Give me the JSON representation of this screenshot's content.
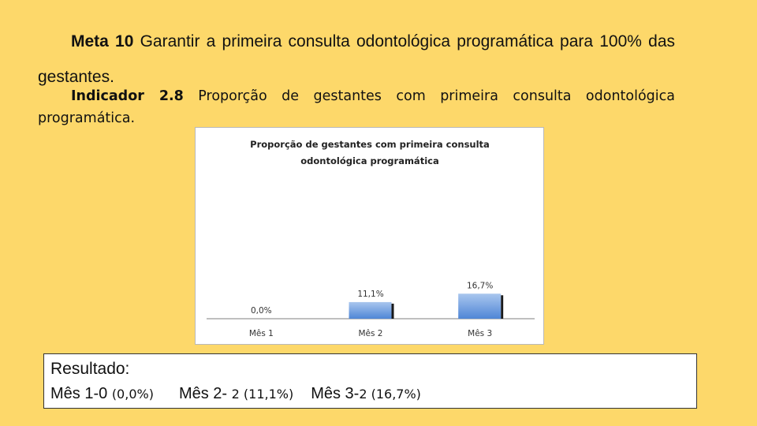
{
  "meta": {
    "label": "Meta 10",
    "text": " Garantir a primeira consulta odontológica programática para 100% das gestantes."
  },
  "indicador": {
    "label": "Indicador 2.8",
    "text": " Proporção de gestantes com primeira consulta odontológica programática."
  },
  "colors": {
    "background": "#fdd86a",
    "bar_top": "#a9c6ee",
    "bar_bottom": "#4f86d6",
    "bar_shadow": "#1a1a1a"
  },
  "chart_data": {
    "type": "bar",
    "title_lines": [
      "Proporção de gestantes com primeira consulta",
      "odontológica programática"
    ],
    "categories": [
      "Mês 1",
      "Mês 2",
      "Mês 3"
    ],
    "values": [
      0.0,
      11.1,
      16.7
    ],
    "data_labels": [
      "0,0%",
      "11,1%",
      "16,7%"
    ],
    "ylim": [
      0,
      100
    ],
    "grid": false,
    "legend": "none"
  },
  "resultado": {
    "title": "Resultado:",
    "items": [
      {
        "prefix": "Mês 1-0 ",
        "detail": "(0,0%)"
      },
      {
        "prefix": "Mês 2- ",
        "detail": "2 (11,1%)"
      },
      {
        "prefix": "Mês 3-",
        "detail": "2 (16,7%)"
      }
    ]
  }
}
